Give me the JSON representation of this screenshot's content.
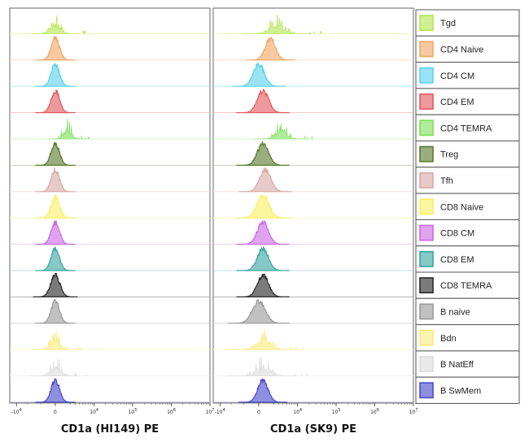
{
  "chart_data": {
    "type": "area",
    "panels": [
      {
        "xlabel": "CD1a (HI149) PE"
      },
      {
        "xlabel": "CD1a (SK9) PE"
      }
    ],
    "x_axis": {
      "scale": "biexponential",
      "ticks": [
        -10000,
        0,
        10000,
        100000,
        1000000,
        10000000
      ],
      "tick_labels": [
        "-10^4",
        "0",
        "10^4",
        "10^5",
        "10^6",
        "10^7"
      ]
    },
    "series": [
      {
        "name": "Tgd",
        "color": "#b5e550",
        "pattern": "sparse",
        "peaks": [
          {
            "center": 0,
            "width": 0.55
          },
          {
            "center": 2500,
            "width": 0.8
          }
        ]
      },
      {
        "name": "CD4 Naive",
        "color": "#f0a868",
        "pattern": "smooth",
        "peaks": [
          {
            "center": 0,
            "width": 0.45
          },
          {
            "center": 1500,
            "width": 0.55
          }
        ]
      },
      {
        "name": "CD4 CM",
        "color": "#5ad2ee",
        "pattern": "smooth",
        "peaks": [
          {
            "center": 0,
            "width": 0.45
          },
          {
            "center": 0,
            "width": 0.6
          }
        ]
      },
      {
        "name": "CD4 EM",
        "color": "#e45a5e",
        "pattern": "smooth",
        "peaks": [
          {
            "center": 0,
            "width": 0.45
          },
          {
            "center": 500,
            "width": 0.6
          }
        ]
      },
      {
        "name": "CD4 TEMRA",
        "color": "#7ee05a",
        "pattern": "sparse",
        "peaks": [
          {
            "center": 1500,
            "width": 0.45
          },
          {
            "center": 3500,
            "width": 0.6
          }
        ]
      },
      {
        "name": "Treg",
        "color": "#5a7a30",
        "pattern": "smooth",
        "peaks": [
          {
            "center": 0,
            "width": 0.45
          },
          {
            "center": 500,
            "width": 0.6
          }
        ]
      },
      {
        "name": "Tfh",
        "color": "#d8aaa8",
        "pattern": "smooth",
        "peaks": [
          {
            "center": 0,
            "width": 0.45
          },
          {
            "center": 800,
            "width": 0.6
          }
        ]
      },
      {
        "name": "CD8 Naive",
        "color": "#f8f064",
        "pattern": "smooth",
        "peaks": [
          {
            "center": 0,
            "width": 0.45
          },
          {
            "center": 500,
            "width": 0.65
          }
        ]
      },
      {
        "name": "CD8 CM",
        "color": "#cc6ae6",
        "pattern": "smooth",
        "peaks": [
          {
            "center": 0,
            "width": 0.45
          },
          {
            "center": 500,
            "width": 0.6
          }
        ]
      },
      {
        "name": "CD8 EM",
        "color": "#3aa6a0",
        "pattern": "smooth",
        "peaks": [
          {
            "center": 0,
            "width": 0.45
          },
          {
            "center": 500,
            "width": 0.6
          }
        ]
      },
      {
        "name": "CD8 TEMRA",
        "color": "#2a2a2a",
        "pattern": "smooth",
        "peaks": [
          {
            "center": 0,
            "width": 0.5
          },
          {
            "center": 500,
            "width": 0.6
          }
        ]
      },
      {
        "name": "B naive",
        "color": "#9a9a9a",
        "pattern": "smooth",
        "peaks": [
          {
            "center": 0,
            "width": 0.45
          },
          {
            "center": 0,
            "width": 0.7
          }
        ]
      },
      {
        "name": "Bdn",
        "color": "#f8ec80",
        "pattern": "sparse",
        "peaks": [
          {
            "center": 0,
            "width": 0.55
          },
          {
            "center": 500,
            "width": 0.8
          }
        ]
      },
      {
        "name": "B NatEff",
        "color": "#dcdcdc",
        "pattern": "sparse",
        "peaks": [
          {
            "center": 0,
            "width": 0.55
          },
          {
            "center": 500,
            "width": 0.8
          }
        ]
      },
      {
        "name": "B SwMem",
        "color": "#4a4acc",
        "pattern": "smooth",
        "peaks": [
          {
            "center": 0,
            "width": 0.45
          },
          {
            "center": 500,
            "width": 0.55
          }
        ]
      }
    ],
    "legend_position": "right",
    "grid": false
  }
}
